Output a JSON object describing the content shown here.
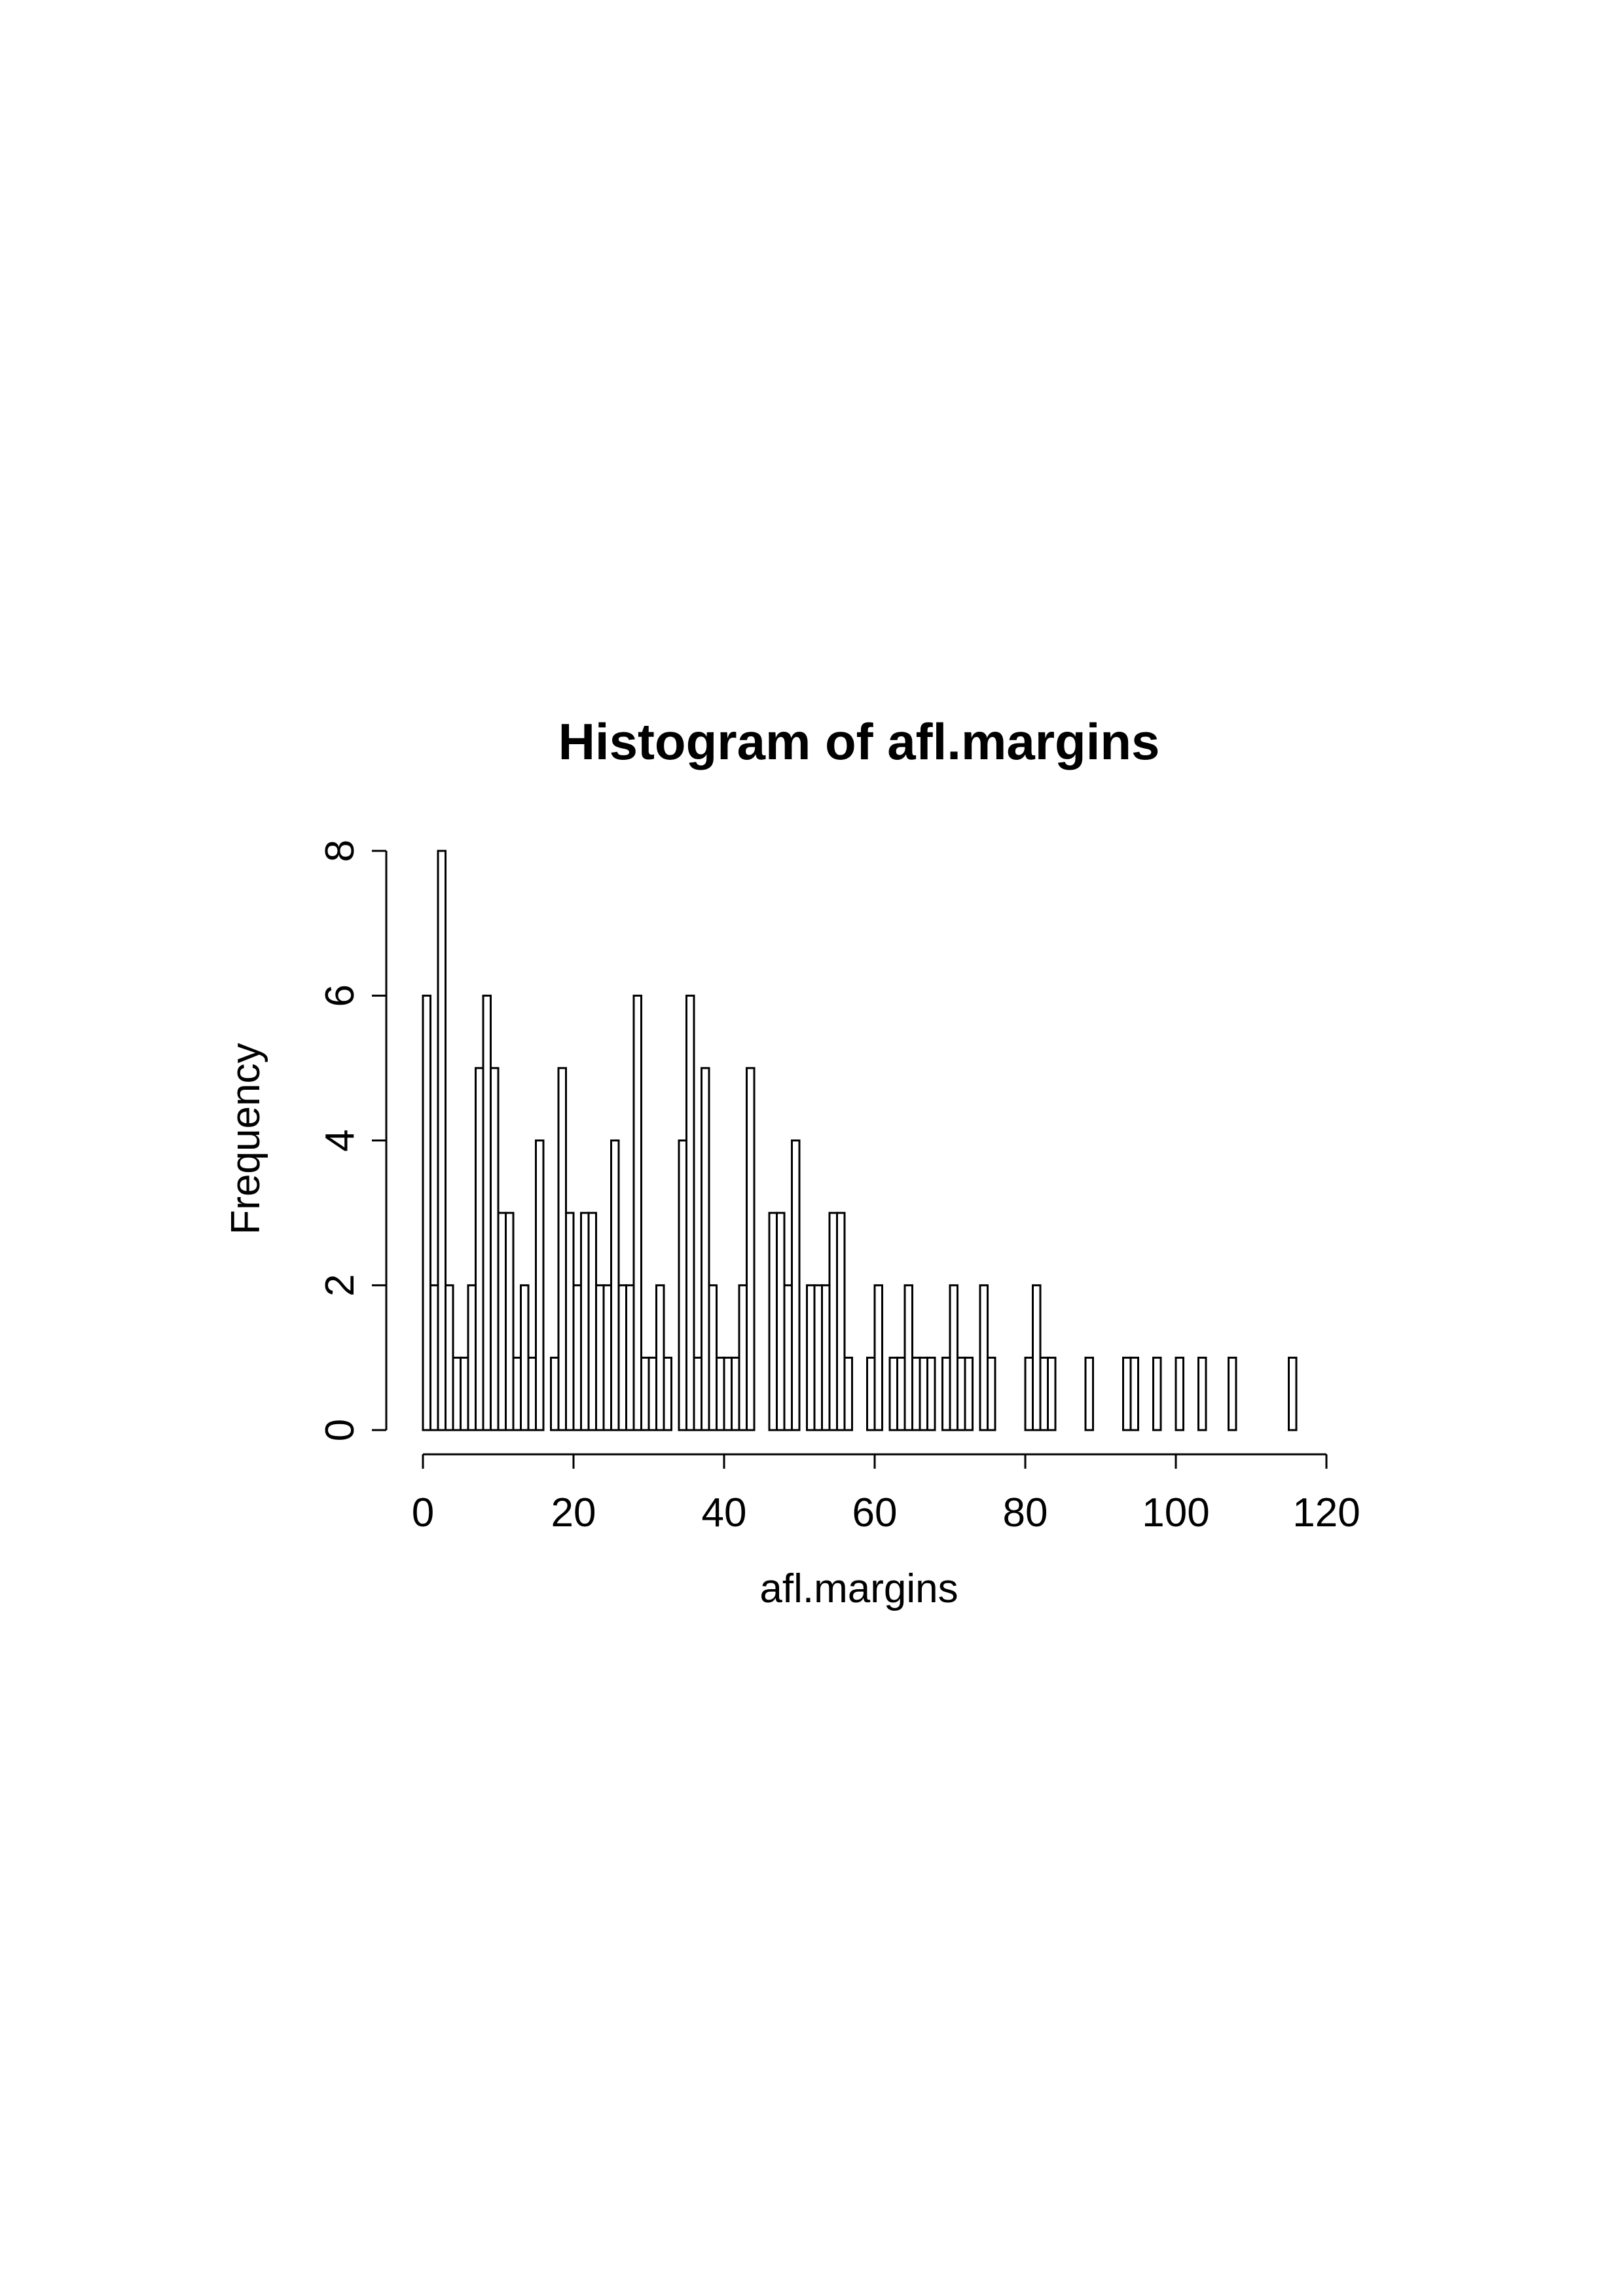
{
  "chart_data": {
    "type": "bar",
    "title": "Histogram of afl.margins",
    "xlabel": "afl.margins",
    "ylabel": "Frequency",
    "bin_width": 1,
    "xlim": [
      0,
      120
    ],
    "ylim": [
      0,
      8
    ],
    "x_ticks": [
      0,
      20,
      40,
      60,
      80,
      100,
      120
    ],
    "y_ticks": [
      0,
      2,
      4,
      6,
      8
    ],
    "bin_starts": [
      0,
      1,
      2,
      3,
      4,
      5,
      6,
      7,
      8,
      9,
      10,
      11,
      12,
      13,
      14,
      15,
      16,
      17,
      18,
      19,
      20,
      21,
      22,
      23,
      24,
      25,
      26,
      27,
      28,
      29,
      30,
      31,
      32,
      33,
      34,
      35,
      36,
      37,
      38,
      39,
      40,
      41,
      42,
      43,
      44,
      45,
      46,
      47,
      48,
      49,
      50,
      51,
      52,
      53,
      54,
      55,
      56,
      57,
      58,
      59,
      60,
      61,
      62,
      63,
      64,
      65,
      66,
      67,
      68,
      69,
      70,
      71,
      72,
      73,
      74,
      75,
      76,
      77,
      78,
      79,
      80,
      81,
      82,
      83,
      84,
      85,
      86,
      87,
      88,
      89,
      90,
      91,
      92,
      93,
      94,
      95,
      96,
      97,
      98,
      99,
      100,
      101,
      102,
      103,
      104,
      105,
      106,
      107,
      108,
      109,
      110,
      111,
      112,
      113,
      114,
      115
    ],
    "values": [
      6,
      2,
      8,
      2,
      1,
      1,
      2,
      5,
      6,
      5,
      3,
      3,
      1,
      2,
      1,
      4,
      0,
      1,
      5,
      3,
      2,
      3,
      3,
      2,
      2,
      4,
      2,
      2,
      6,
      1,
      1,
      2,
      1,
      0,
      4,
      6,
      1,
      5,
      2,
      1,
      1,
      1,
      2,
      5,
      0,
      0,
      3,
      3,
      2,
      4,
      0,
      2,
      2,
      2,
      3,
      3,
      1,
      0,
      0,
      1,
      2,
      0,
      1,
      1,
      2,
      1,
      1,
      1,
      0,
      1,
      2,
      1,
      1,
      0,
      2,
      1,
      0,
      0,
      0,
      0,
      1,
      2,
      1,
      1,
      0,
      0,
      0,
      0,
      1,
      0,
      0,
      0,
      0,
      1,
      1,
      0,
      0,
      1,
      0,
      0,
      1,
      0,
      0,
      1,
      0,
      0,
      0,
      1,
      0,
      0,
      0,
      0,
      0,
      0,
      0,
      1
    ]
  }
}
